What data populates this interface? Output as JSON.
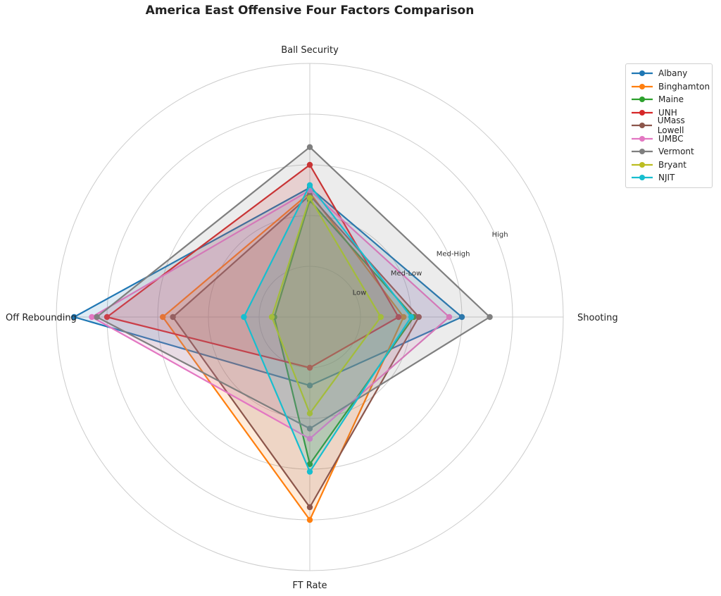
{
  "chart_data": {
    "type": "radar",
    "title": "America East Offensive Four Factors Comparison",
    "axes": [
      "Shooting",
      "Ball Security",
      "Off Rebounding",
      "FT Rate"
    ],
    "rlim": [
      0,
      5
    ],
    "rings": [
      1,
      2,
      3,
      4,
      5
    ],
    "ring_labels": [
      "Low",
      "Med-Low",
      "Med-High",
      "High"
    ],
    "grid": true,
    "legend_position": "top-right",
    "series": [
      {
        "name": "Albany",
        "color": "#1f77b4",
        "values": [
          3.0,
          2.55,
          4.65,
          1.35
        ]
      },
      {
        "name": "Binghamton",
        "color": "#ff7f0e",
        "values": [
          1.85,
          2.45,
          2.9,
          4.0
        ]
      },
      {
        "name": "Maine",
        "color": "#2ca02c",
        "values": [
          2.05,
          2.3,
          0.7,
          2.9
        ]
      },
      {
        "name": "UNH",
        "color": "#d62728",
        "values": [
          1.75,
          3.0,
          4.0,
          1.0
        ]
      },
      {
        "name": "UMass Lowell",
        "color": "#8c564b",
        "values": [
          2.15,
          2.4,
          2.7,
          3.75
        ]
      },
      {
        "name": "UMBC",
        "color": "#e377c2",
        "values": [
          2.75,
          2.5,
          4.3,
          2.4
        ]
      },
      {
        "name": "Vermont",
        "color": "#7f7f7f",
        "values": [
          3.55,
          3.35,
          4.2,
          2.2
        ]
      },
      {
        "name": "Bryant",
        "color": "#bcbd22",
        "values": [
          1.4,
          2.35,
          0.75,
          1.9
        ]
      },
      {
        "name": "NJIT",
        "color": "#17becf",
        "values": [
          2.0,
          2.6,
          1.3,
          3.05
        ]
      }
    ]
  }
}
